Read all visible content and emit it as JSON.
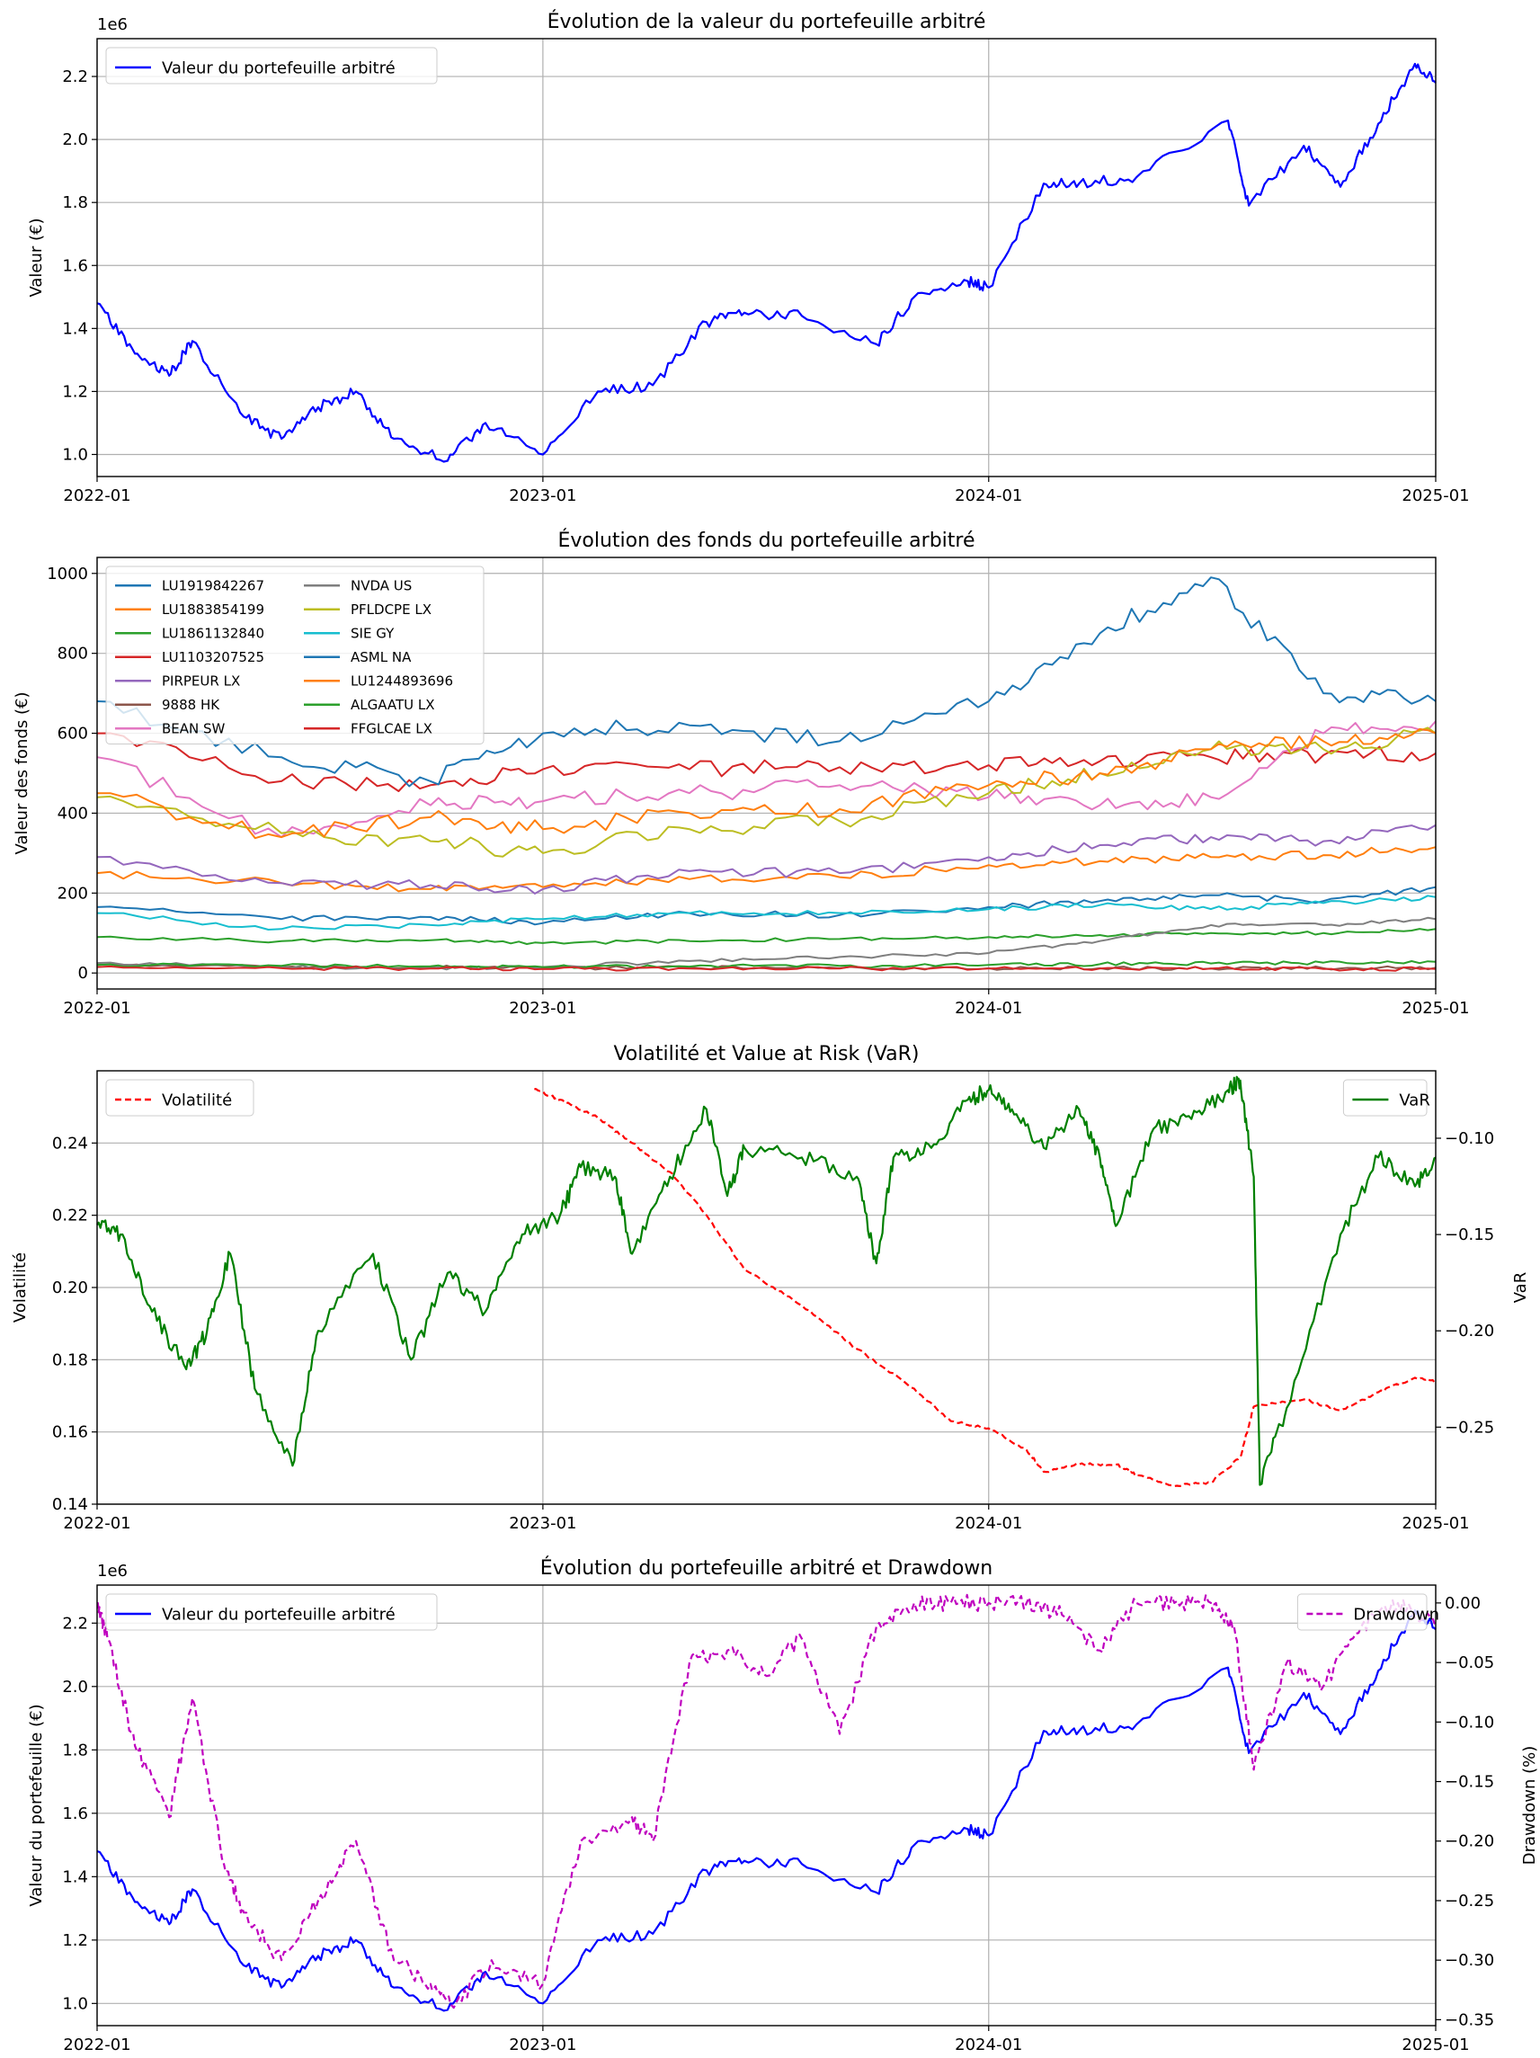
{
  "chart_data": [
    {
      "type": "line",
      "title": "Évolution de la valeur du portefeuille arbitré",
      "xlabel": "",
      "ylabel": "Valeur (€)",
      "y_offset_label": "1e6",
      "x_ticks": [
        "2022-01",
        "2023-01",
        "2024-01",
        "2025-01"
      ],
      "xlim": [
        "2022-01-01",
        "2025-01-01"
      ],
      "y_ticks": [
        "1.0",
        "1.2",
        "1.4",
        "1.6",
        "1.8",
        "2.0",
        "2.2"
      ],
      "ylim": [
        0.93,
        2.32
      ],
      "grid": true,
      "legend": {
        "placement": "upper-left",
        "entries": [
          "Valeur du portefeuille arbitré"
        ]
      },
      "series": [
        {
          "name": "Valeur du portefeuille arbitré",
          "color": "#0000ff",
          "x": [
            "2022-01-01",
            "2022-02-01",
            "2022-03-01",
            "2022-03-20",
            "2022-05-01",
            "2022-06-01",
            "2022-07-01",
            "2022-08-01",
            "2022-09-01",
            "2022-10-15",
            "2022-11-15",
            "2023-01-01",
            "2023-02-15",
            "2023-04-01",
            "2023-05-15",
            "2023-06-15",
            "2023-08-01",
            "2023-10-01",
            "2023-11-01",
            "2023-12-15",
            "2024-01-01",
            "2024-02-15",
            "2024-03-15",
            "2024-05-01",
            "2024-07-15",
            "2024-08-01",
            "2024-09-15",
            "2024-10-15",
            "2024-11-15",
            "2024-12-15",
            "2025-01-01"
          ],
          "y": [
            1.48,
            1.32,
            1.25,
            1.36,
            1.12,
            1.05,
            1.15,
            1.2,
            1.05,
            0.98,
            1.1,
            1.0,
            1.2,
            1.22,
            1.42,
            1.45,
            1.44,
            1.35,
            1.5,
            1.55,
            1.53,
            1.86,
            1.86,
            1.88,
            2.06,
            1.79,
            1.98,
            1.85,
            2.05,
            2.24,
            2.18
          ]
        }
      ]
    },
    {
      "type": "line",
      "title": "Évolution des fonds du portefeuille arbitré",
      "xlabel": "",
      "ylabel": "Valeur des fonds (€)",
      "x_ticks": [
        "2022-01",
        "2023-01",
        "2024-01",
        "2025-01"
      ],
      "xlim": [
        "2022-01-01",
        "2025-01-01"
      ],
      "y_ticks": [
        "0",
        "200",
        "400",
        "600",
        "800",
        "1000"
      ],
      "ylim": [
        -40,
        1040
      ],
      "grid": true,
      "legend": {
        "placement": "upper-left",
        "columns": 2
      },
      "x": [
        "2022-01-01",
        "2022-06-01",
        "2022-10-01",
        "2023-01-01",
        "2023-05-01",
        "2023-09-01",
        "2024-01-01",
        "2024-04-01",
        "2024-07-01",
        "2024-10-01",
        "2025-01-01"
      ],
      "series": [
        {
          "name": "LU1919842267",
          "color": "#1f77b4",
          "values": [
            165,
            135,
            140,
            125,
            150,
            145,
            165,
            180,
            195,
            180,
            215
          ]
        },
        {
          "name": "LU1883854199",
          "color": "#ff7f0e",
          "values": [
            250,
            225,
            210,
            215,
            235,
            240,
            270,
            280,
            290,
            295,
            315
          ]
        },
        {
          "name": "LU1861132840",
          "color": "#2ca02c",
          "values": [
            90,
            80,
            82,
            75,
            80,
            85,
            90,
            95,
            100,
            100,
            110
          ]
        },
        {
          "name": "LU1103207525",
          "color": "#d62728",
          "values": [
            600,
            480,
            470,
            510,
            510,
            515,
            520,
            530,
            540,
            545,
            550
          ]
        },
        {
          "name": "PIRPEUR LX",
          "color": "#9467bd",
          "values": [
            290,
            225,
            220,
            210,
            255,
            250,
            290,
            320,
            340,
            330,
            370
          ]
        },
        {
          "name": "9888 HK",
          "color": "#8c564b",
          "values": [
            20,
            15,
            16,
            12,
            14,
            12,
            12,
            12,
            11,
            12,
            13
          ]
        },
        {
          "name": "BEAN SW",
          "color": "#e377c2",
          "values": [
            540,
            340,
            420,
            430,
            450,
            470,
            440,
            420,
            440,
            600,
            630
          ]
        },
        {
          "name": "NVDA US",
          "color": "#7f7f7f",
          "values": [
            25,
            15,
            12,
            15,
            30,
            40,
            50,
            80,
            120,
            120,
            135
          ]
        },
        {
          "name": "PFLDCPE LX",
          "color": "#bcbd22",
          "values": [
            440,
            350,
            330,
            300,
            360,
            380,
            450,
            500,
            560,
            560,
            600
          ]
        },
        {
          "name": "SIE GY",
          "color": "#17becf",
          "values": [
            150,
            110,
            120,
            135,
            150,
            150,
            160,
            170,
            160,
            175,
            190
          ]
        },
        {
          "name": "ASML NA",
          "color": "#1f77b4",
          "values": [
            680,
            540,
            480,
            600,
            620,
            580,
            680,
            850,
            990,
            700,
            680
          ]
        },
        {
          "name": "LU1244893696",
          "color": "#ff7f0e",
          "values": [
            450,
            340,
            390,
            360,
            400,
            410,
            470,
            500,
            560,
            580,
            600
          ]
        },
        {
          "name": "ALGAATU LX",
          "color": "#2ca02c",
          "values": [
            20,
            18,
            17,
            15,
            16,
            18,
            20,
            22,
            24,
            26,
            28
          ]
        },
        {
          "name": "FFGLCAE LX",
          "color": "#d62728",
          "values": [
            15,
            12,
            11,
            10,
            11,
            11,
            11,
            11,
            11,
            10,
            10
          ]
        }
      ]
    },
    {
      "type": "line",
      "title": "Volatilité et Value at Risk (VaR)",
      "xlabel": "",
      "ylabel": "Volatilité",
      "ylabel_right": "VaR",
      "x_ticks": [
        "2022-01",
        "2023-01",
        "2024-01",
        "2025-01"
      ],
      "xlim": [
        "2022-01-01",
        "2025-01-01"
      ],
      "y_ticks": [
        "0.14",
        "0.16",
        "0.18",
        "0.20",
        "0.22",
        "0.24"
      ],
      "ylim": [
        0.14,
        0.26
      ],
      "y_ticks_right": [
        "−0.25",
        "−0.20",
        "−0.15",
        "−0.10"
      ],
      "ylim_right": [
        -0.29,
        -0.065
      ],
      "grid": true,
      "legend": {
        "left_placement": "upper-left",
        "right_placement": "upper-right"
      },
      "series": [
        {
          "name": "Volatilité",
          "axis": "left",
          "color": "#ff0000",
          "style": "dashed",
          "x": [
            "2022-12-25",
            "2023-01-15",
            "2023-02-15",
            "2023-03-15",
            "2023-04-15",
            "2023-05-15",
            "2023-06-15",
            "2023-08-01",
            "2023-09-15",
            "2023-11-01",
            "2023-12-01",
            "2024-01-01",
            "2024-02-01",
            "2024-02-15",
            "2024-03-15",
            "2024-04-15",
            "2024-05-01",
            "2024-06-01",
            "2024-07-01",
            "2024-07-25",
            "2024-08-05",
            "2024-09-15",
            "2024-10-15",
            "2024-11-15",
            "2024-12-15",
            "2025-01-01"
          ],
          "y": [
            0.255,
            0.252,
            0.247,
            0.24,
            0.232,
            0.22,
            0.205,
            0.195,
            0.183,
            0.172,
            0.163,
            0.161,
            0.155,
            0.149,
            0.151,
            0.151,
            0.148,
            0.145,
            0.146,
            0.153,
            0.167,
            0.169,
            0.166,
            0.171,
            0.175,
            0.174
          ]
        },
        {
          "name": "VaR",
          "axis": "right",
          "color": "#008000",
          "style": "solid",
          "x": [
            "2022-01-01",
            "2022-01-20",
            "2022-02-15",
            "2022-03-15",
            "2022-04-01",
            "2022-04-20",
            "2022-05-10",
            "2022-06-10",
            "2022-07-01",
            "2022-08-15",
            "2022-09-15",
            "2022-10-15",
            "2022-11-15",
            "2022-12-15",
            "2023-01-15",
            "2023-02-01",
            "2023-03-01",
            "2023-03-15",
            "2023-04-15",
            "2023-05-15",
            "2023-06-01",
            "2023-06-15",
            "2023-08-01",
            "2023-09-15",
            "2023-10-01",
            "2023-10-15",
            "2023-11-15",
            "2023-12-15",
            "2024-01-01",
            "2024-01-20",
            "2024-02-15",
            "2024-03-15",
            "2024-04-01",
            "2024-04-15",
            "2024-05-15",
            "2024-06-15",
            "2024-07-15",
            "2024-07-25",
            "2024-08-05",
            "2024-08-10",
            "2024-09-01",
            "2024-10-15",
            "2024-11-15",
            "2024-12-15",
            "2025-01-01"
          ],
          "y": [
            -0.145,
            -0.15,
            -0.19,
            -0.22,
            -0.2,
            -0.16,
            -0.23,
            -0.27,
            -0.2,
            -0.16,
            -0.215,
            -0.17,
            -0.19,
            -0.15,
            -0.14,
            -0.115,
            -0.12,
            -0.16,
            -0.12,
            -0.085,
            -0.13,
            -0.105,
            -0.11,
            -0.12,
            -0.165,
            -0.11,
            -0.105,
            -0.08,
            -0.075,
            -0.085,
            -0.105,
            -0.085,
            -0.11,
            -0.145,
            -0.095,
            -0.09,
            -0.075,
            -0.07,
            -0.12,
            -0.28,
            -0.24,
            -0.15,
            -0.11,
            -0.125,
            -0.11
          ]
        }
      ]
    },
    {
      "type": "line",
      "title": "Évolution du portefeuille arbitré et Drawdown",
      "xlabel": "",
      "ylabel": "Valeur du portefeuille (€)",
      "ylabel_right": "Drawdown (%)",
      "y_offset_label": "1e6",
      "x_ticks": [
        "2022-01",
        "2023-01",
        "2024-01",
        "2025-01"
      ],
      "xlim": [
        "2022-01-01",
        "2025-01-01"
      ],
      "y_ticks": [
        "1.0",
        "1.2",
        "1.4",
        "1.6",
        "1.8",
        "2.0",
        "2.2"
      ],
      "ylim": [
        0.93,
        2.32
      ],
      "y_ticks_right": [
        "−0.35",
        "−0.30",
        "−0.25",
        "−0.20",
        "−0.15",
        "−0.10",
        "−0.05",
        "0.00"
      ],
      "ylim_right": [
        -0.355,
        0.015
      ],
      "grid": true,
      "legend": {
        "left_placement": "upper-left",
        "right_placement": "upper-right"
      },
      "series": [
        {
          "name": "Valeur du portefeuille arbitré",
          "axis": "left",
          "color": "#0000ff",
          "style": "solid",
          "same_as": "chart_data.0.series.0"
        },
        {
          "name": "Drawdown",
          "axis": "right",
          "color": "#bf00bf",
          "style": "dashed",
          "x": [
            "2022-01-01",
            "2022-01-10",
            "2022-02-01",
            "2022-03-01",
            "2022-03-20",
            "2022-04-15",
            "2022-05-01",
            "2022-06-01",
            "2022-07-01",
            "2022-08-01",
            "2022-09-01",
            "2022-10-01",
            "2022-10-20",
            "2022-11-20",
            "2023-01-01",
            "2023-02-01",
            "2023-03-15",
            "2023-04-01",
            "2023-05-01",
            "2023-06-01",
            "2023-07-01",
            "2023-08-01",
            "2023-09-01",
            "2023-10-01",
            "2023-11-01",
            "2023-12-01",
            "2024-01-01",
            "2024-02-01",
            "2024-03-01",
            "2024-04-01",
            "2024-05-01",
            "2024-06-01",
            "2024-07-01",
            "2024-07-20",
            "2024-08-05",
            "2024-09-01",
            "2024-10-01",
            "2024-11-01",
            "2024-12-01",
            "2025-01-01"
          ],
          "y": [
            0.0,
            -0.03,
            -0.12,
            -0.18,
            -0.08,
            -0.22,
            -0.26,
            -0.3,
            -0.25,
            -0.2,
            -0.3,
            -0.32,
            -0.34,
            -0.3,
            -0.32,
            -0.2,
            -0.18,
            -0.2,
            -0.05,
            -0.04,
            -0.06,
            -0.03,
            -0.11,
            -0.02,
            0.0,
            0.0,
            0.0,
            0.0,
            -0.01,
            -0.04,
            0.0,
            0.0,
            0.0,
            -0.02,
            -0.14,
            -0.05,
            -0.07,
            -0.02,
            0.0,
            -0.02
          ]
        }
      ]
    }
  ]
}
